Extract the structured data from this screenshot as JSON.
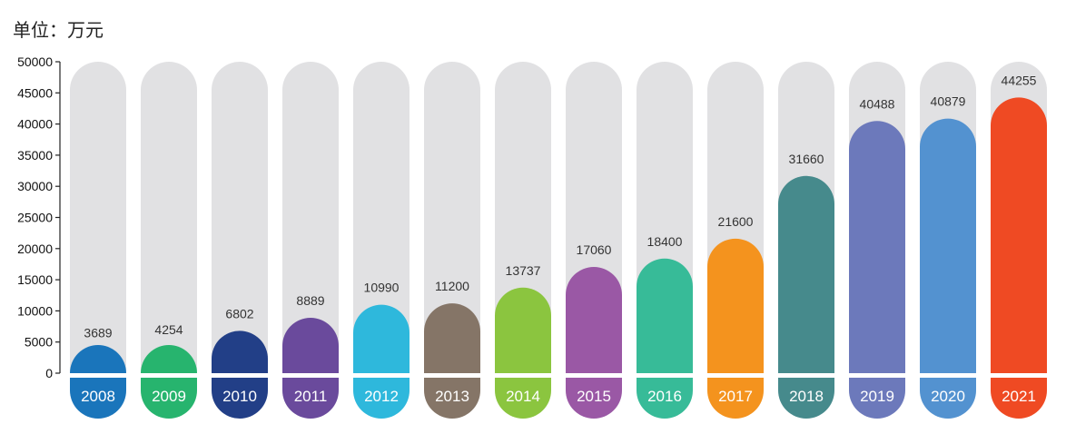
{
  "unit_label": "单位：万元",
  "colors": {
    "track": "#e1e1e3",
    "axis": "#222222",
    "series": [
      "#1a75bb",
      "#27b46e",
      "#223f87",
      "#6a4a9c",
      "#2eb8dc",
      "#857567",
      "#8bc53f",
      "#9a58a5",
      "#37bb98",
      "#f4931e",
      "#468a8c",
      "#6c79bb",
      "#5392d0",
      "#ef4a23"
    ]
  },
  "chart_data": {
    "type": "bar",
    "title": "",
    "ylabel": "单位：万元",
    "ylim": [
      0,
      50000
    ],
    "yticks": [
      0,
      5000,
      10000,
      15000,
      20000,
      25000,
      30000,
      35000,
      40000,
      45000,
      50000
    ],
    "categories": [
      "2008",
      "2009",
      "2010",
      "2011",
      "2012",
      "2013",
      "2014",
      "2015",
      "2016",
      "2017",
      "2018",
      "2019",
      "2020",
      "2021"
    ],
    "values": [
      3689,
      4254,
      6802,
      8889,
      10990,
      11200,
      13737,
      17060,
      18400,
      21600,
      31660,
      40488,
      40879,
      44255
    ]
  }
}
